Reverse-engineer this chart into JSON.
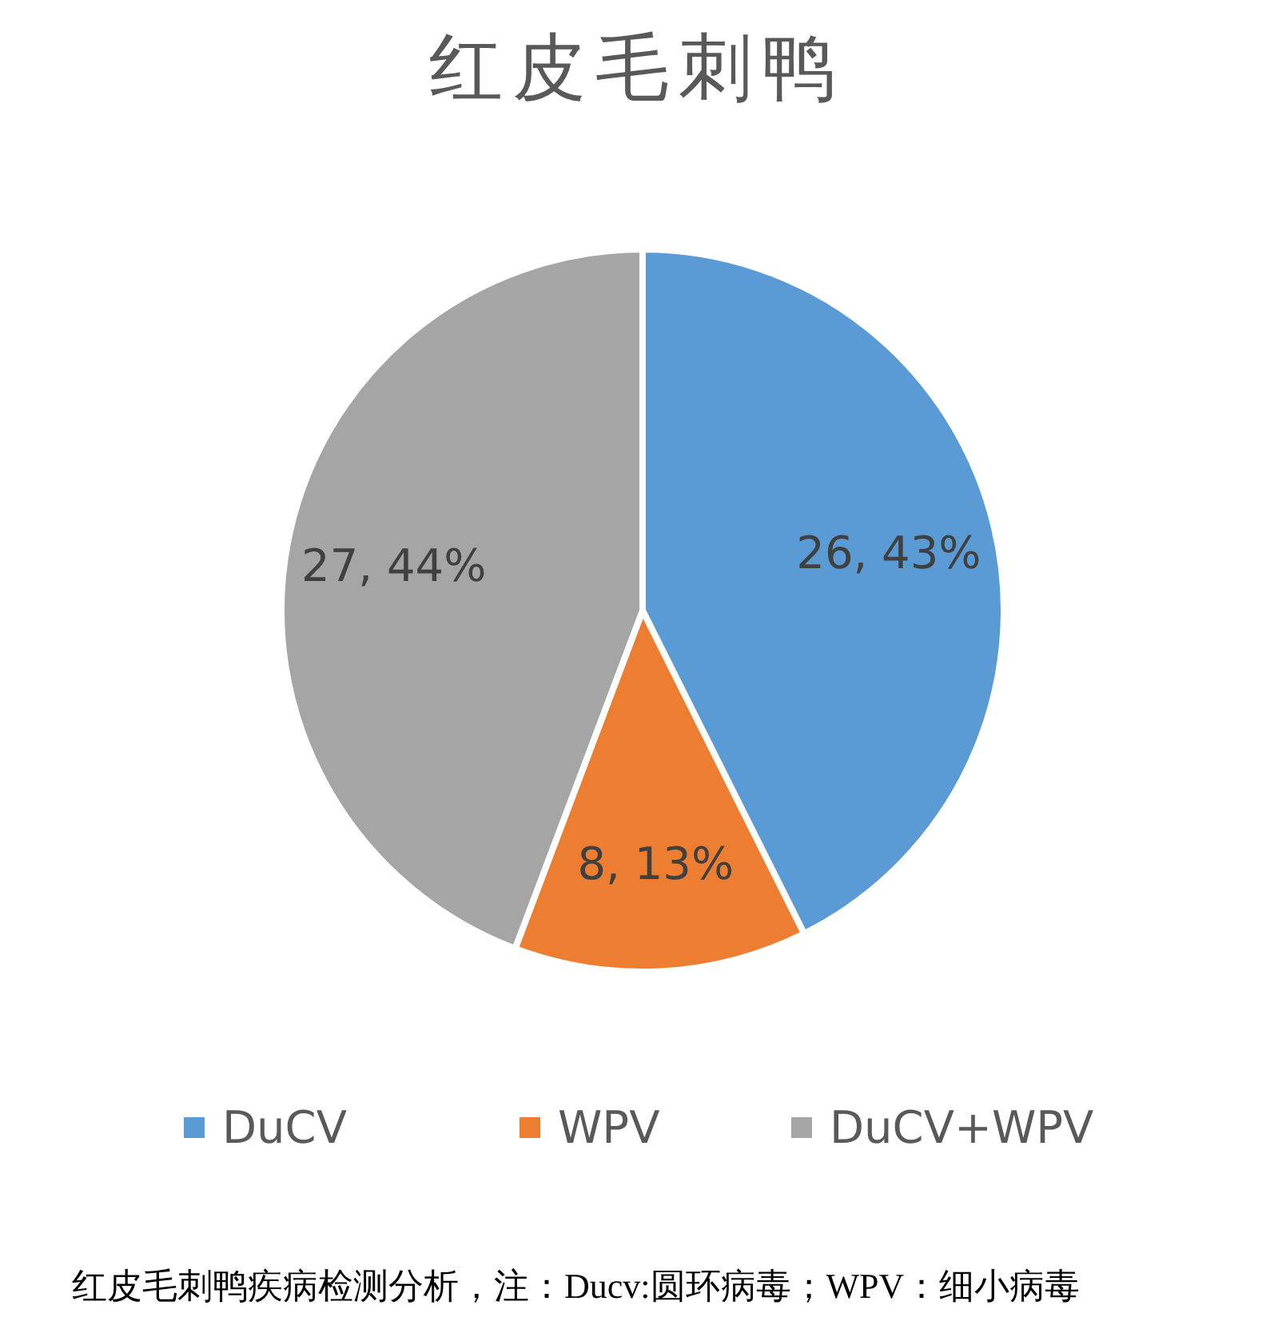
{
  "chart_data": {
    "type": "pie",
    "title": "红皮毛刺鸭",
    "categories": [
      "DuCV",
      "WPV",
      "DuCV+WPV"
    ],
    "values": [
      26,
      8,
      27
    ],
    "value_labels": [
      "26, 43%",
      "8, 13%",
      "27, 44%"
    ],
    "colors": [
      "#5b9bd5",
      "#ed7d31",
      "#a5a5a5"
    ],
    "legend": "bottom",
    "annotations": [
      "红皮毛刺鸭疾病检测分析，注：Ducv:圆环病毒；WPV：细小病毒"
    ]
  }
}
